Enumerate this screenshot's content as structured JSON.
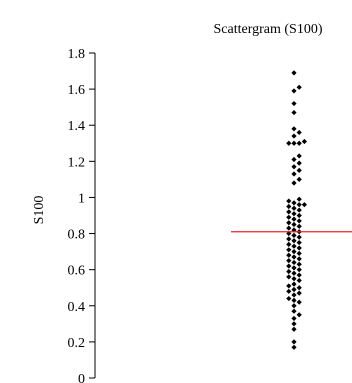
{
  "chart_data": {
    "type": "scatter",
    "title": "Scattergram (S100)",
    "xlabel": "",
    "ylabel": "S100",
    "ylim": [
      0,
      1.8
    ],
    "yticks": [
      {
        "value": 0,
        "label": "0"
      },
      {
        "value": 0.2,
        "label": "0.2"
      },
      {
        "value": 0.4,
        "label": "0.4"
      },
      {
        "value": 0.6,
        "label": "0.6"
      },
      {
        "value": 0.8,
        "label": "0.8"
      },
      {
        "value": 1.0,
        "label": "1"
      },
      {
        "value": 1.2,
        "label": "1.2"
      },
      {
        "value": 1.4,
        "label": "1.4"
      },
      {
        "value": 1.6,
        "label": "1.6"
      },
      {
        "value": 1.8,
        "label": "1.8"
      }
    ],
    "grid": false,
    "point_color": "#000000",
    "reference_line": {
      "value": 0.81,
      "color": "#e8262b"
    },
    "series": [
      {
        "values": [
          1.69,
          1.61,
          1.59,
          1.52,
          1.47,
          1.38,
          1.36,
          1.34,
          1.31,
          1.3,
          1.3,
          1.3,
          1.23,
          1.21,
          1.19,
          1.17,
          1.15,
          1.13,
          1.1,
          1.08,
          0.99,
          0.98,
          0.97,
          0.96,
          0.96,
          0.95,
          0.94,
          0.93,
          0.92,
          0.91,
          0.9,
          0.89,
          0.88,
          0.87,
          0.86,
          0.85,
          0.84,
          0.83,
          0.82,
          0.81,
          0.8,
          0.79,
          0.78,
          0.77,
          0.76,
          0.75,
          0.74,
          0.73,
          0.72,
          0.71,
          0.7,
          0.69,
          0.68,
          0.67,
          0.66,
          0.65,
          0.64,
          0.63,
          0.62,
          0.61,
          0.6,
          0.59,
          0.58,
          0.57,
          0.56,
          0.55,
          0.54,
          0.52,
          0.51,
          0.5,
          0.49,
          0.48,
          0.47,
          0.46,
          0.44,
          0.43,
          0.42,
          0.4,
          0.37,
          0.35,
          0.33,
          0.3,
          0.27,
          0.2,
          0.17
        ]
      }
    ]
  }
}
